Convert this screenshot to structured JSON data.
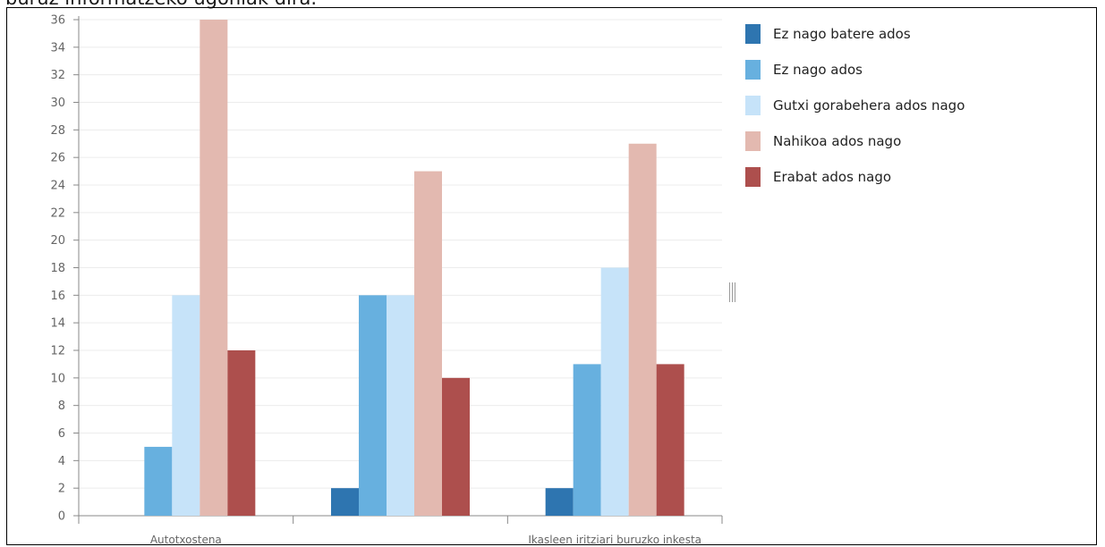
{
  "title": "buruz informatzeko ugoniak dira.",
  "chart_data": {
    "type": "bar",
    "categories": [
      "Autotxostena",
      "",
      "Ikasleen iritziari buruzko inkesta"
    ],
    "series": [
      {
        "name": "Ez nago batere ados",
        "color": "#2e75b0",
        "values": [
          0,
          2,
          2
        ]
      },
      {
        "name": "Ez nago ados",
        "color": "#67b0df",
        "values": [
          5,
          16,
          11
        ]
      },
      {
        "name": "Gutxi gorabehera ados nago",
        "color": "#c6e3f9",
        "values": [
          16,
          16,
          18
        ]
      },
      {
        "name": "Nahikoa ados nago",
        "color": "#e3b9b0",
        "values": [
          36,
          25,
          27
        ]
      },
      {
        "name": "Erabat ados nago",
        "color": "#ad4f4d",
        "values": [
          12,
          10,
          11
        ]
      }
    ],
    "yticks": [
      "0",
      "2",
      "4",
      "6",
      "8",
      "10",
      "12",
      "14",
      "16",
      "18",
      "20",
      "22",
      "24",
      "26",
      "28",
      "30",
      "32",
      "34",
      "36"
    ],
    "ylim": [
      0,
      36
    ],
    "grid": true,
    "legend": "right"
  }
}
